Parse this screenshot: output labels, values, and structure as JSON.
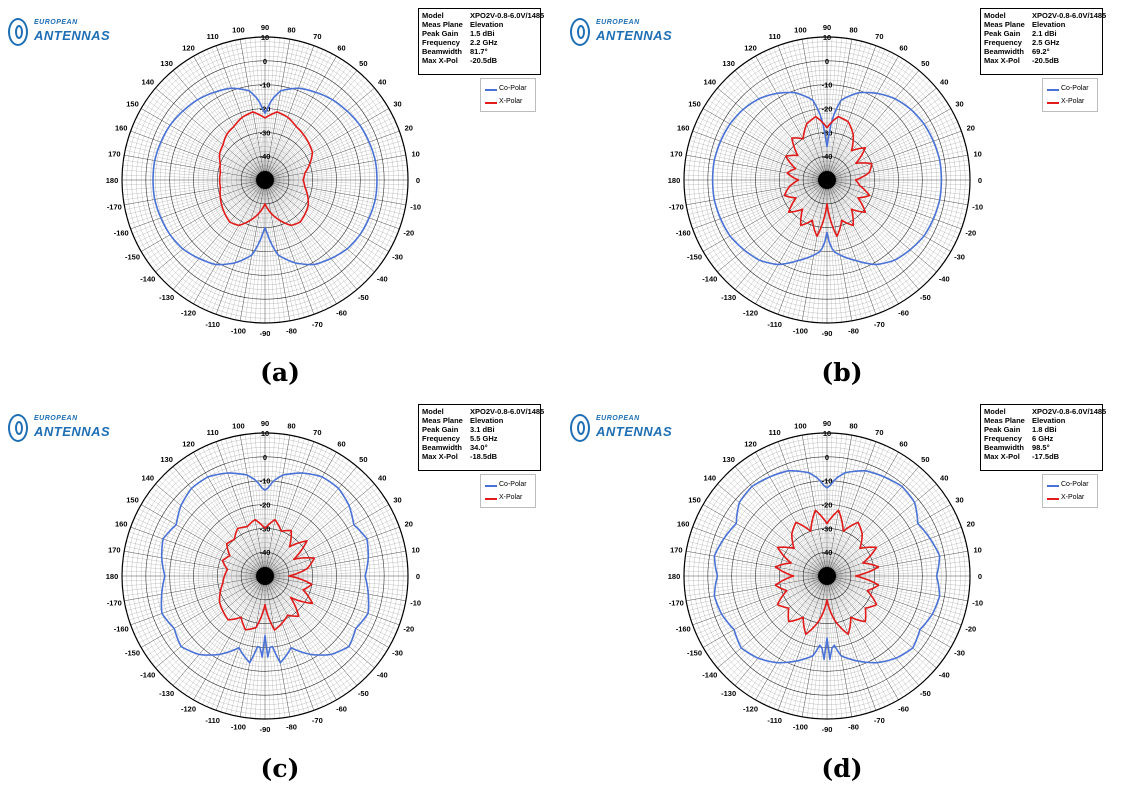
{
  "brand": {
    "line1": "EUROPEAN",
    "line2": "ANTENNAS"
  },
  "colors": {
    "co_polar": "#4a72d6",
    "x_polar": "#e11a1a",
    "grid": "#000000"
  },
  "info_labels": {
    "model": "Model",
    "meas_plane": "Meas Plane",
    "peak_gain": "Peak Gain",
    "frequency": "Frequency",
    "beamwidth": "Beamwidth",
    "max_xpol": "Max X-Pol"
  },
  "legend": {
    "co_polar": "Co-Polar",
    "x_polar": "X-Polar"
  },
  "panels": [
    {
      "caption": "(a)",
      "info": {
        "model": "XPO2V-0.8-6.0V/1485",
        "meas_plane": "Elevation",
        "peak_gain": "1.5 dBi",
        "frequency": "2.2 GHz",
        "beamwidth": "81.7°",
        "max_xpol": "-20.5dB"
      }
    },
    {
      "caption": "(b)",
      "info": {
        "model": "XPO2V-0.8-6.0V/1485",
        "meas_plane": "Elevation",
        "peak_gain": "2.1 dBi",
        "frequency": "2.5 GHz",
        "beamwidth": "69.2°",
        "max_xpol": "-20.5dB"
      }
    },
    {
      "caption": "(c)",
      "info": {
        "model": "XPO2V-0.8-6.0V/1485",
        "meas_plane": "Elevation",
        "peak_gain": "3.1 dBi",
        "frequency": "5.5 GHz",
        "beamwidth": "34.0°",
        "max_xpol": "-18.5dB"
      }
    },
    {
      "caption": "(d)",
      "info": {
        "model": "XPO2V-0.8-6.0V/1485",
        "meas_plane": "Elevation",
        "peak_gain": "1.8 dBi",
        "frequency": "6 GHz",
        "beamwidth": "98.5°",
        "max_xpol": "-17.5dB"
      }
    }
  ],
  "chart_data": [
    {
      "type": "polar",
      "id": "a",
      "r_range_db": [
        -50,
        10
      ],
      "r_ticks": [
        "10",
        "0",
        "-10",
        "-20",
        "-30",
        "-40"
      ],
      "angle_labels": [
        "0",
        "10",
        "20",
        "30",
        "40",
        "50",
        "60",
        "70",
        "80",
        "90",
        "100",
        "110",
        "120",
        "130",
        "140",
        "150",
        "160",
        "170",
        "180",
        "-170",
        "-160",
        "-150",
        "-140",
        "-130",
        "-120",
        "-110",
        "-100",
        "-90",
        "-80",
        "-70",
        "-60",
        "-50",
        "-40",
        "-30",
        "-20",
        "-10"
      ],
      "series": [
        {
          "name": "Co-Polar",
          "angles_deg": [
            0,
            10,
            20,
            30,
            40,
            50,
            60,
            70,
            80,
            85,
            88,
            90,
            92,
            95,
            100,
            110,
            120,
            130,
            140,
            150,
            160,
            170,
            180,
            -170,
            -160,
            -150,
            -140,
            -130,
            -120,
            -110,
            -100,
            -95,
            -92,
            -90,
            -88,
            -85,
            -80,
            -70,
            -60,
            -50,
            -40,
            -30,
            -20,
            -10
          ],
          "values_db": [
            -3,
            -3,
            -3.5,
            -4,
            -5,
            -6,
            -7.5,
            -9,
            -12,
            -16,
            -20,
            -22,
            -20,
            -16,
            -12,
            -9,
            -7.5,
            -6,
            -5,
            -4,
            -3.5,
            -3,
            -3,
            -3,
            -3.5,
            -4,
            -5,
            -7,
            -9,
            -13,
            -18,
            -24,
            -28,
            -30,
            -28,
            -24,
            -18,
            -13,
            -9,
            -7,
            -5,
            -4,
            -3.5,
            -3
          ]
        },
        {
          "name": "X-Polar",
          "angles_deg": [
            0,
            10,
            20,
            30,
            40,
            50,
            60,
            70,
            80,
            90,
            100,
            110,
            120,
            130,
            140,
            150,
            160,
            170,
            180,
            -170,
            -160,
            -150,
            -140,
            -130,
            -120,
            -110,
            -100,
            -90,
            -80,
            -70,
            -60,
            -50,
            -40,
            -30,
            -20,
            -10
          ],
          "values_db": [
            -34,
            -33,
            -30,
            -27,
            -26,
            -25,
            -24,
            -22,
            -21,
            -24,
            -21,
            -22,
            -24,
            -25,
            -27,
            -28,
            -30,
            -31,
            -31,
            -31,
            -30,
            -29,
            -28,
            -27,
            -28,
            -32,
            -36,
            -40,
            -36,
            -32,
            -28,
            -27,
            -28,
            -29,
            -31,
            -33
          ]
        }
      ]
    },
    {
      "type": "polar",
      "id": "b",
      "r_range_db": [
        -50,
        10
      ],
      "r_ticks": [
        "10",
        "0",
        "-10",
        "-20",
        "-30",
        "-40"
      ],
      "angle_labels": [
        "0",
        "10",
        "20",
        "30",
        "40",
        "50",
        "60",
        "70",
        "80",
        "90",
        "100",
        "110",
        "120",
        "130",
        "140",
        "150",
        "160",
        "170",
        "180",
        "-170",
        "-160",
        "-150",
        "-140",
        "-130",
        "-120",
        "-110",
        "-100",
        "-90",
        "-80",
        "-70",
        "-60",
        "-50",
        "-40",
        "-30",
        "-20",
        "-10"
      ],
      "series": [
        {
          "name": "Co-Polar",
          "angles_deg": [
            0,
            10,
            20,
            30,
            40,
            50,
            60,
            70,
            80,
            85,
            88,
            90,
            92,
            95,
            100,
            110,
            120,
            130,
            140,
            150,
            160,
            170,
            180,
            -170,
            -160,
            -150,
            -140,
            -130,
            -120,
            -110,
            -100,
            -95,
            -92,
            -90,
            -88,
            -85,
            -80,
            -70,
            -60,
            -50,
            -40,
            -30,
            -20,
            -10
          ],
          "values_db": [
            -2,
            -2,
            -2.5,
            -3,
            -4,
            -5.5,
            -8,
            -11,
            -16,
            -24,
            -32,
            -36,
            -32,
            -24,
            -16,
            -11,
            -8,
            -5.5,
            -4,
            -3,
            -2.5,
            -2,
            -2,
            -2,
            -2.5,
            -3,
            -4.5,
            -6,
            -9,
            -14,
            -18,
            -20,
            -24,
            -28,
            -24,
            -20,
            -18,
            -14,
            -9,
            -6,
            -4.5,
            -3,
            -2.5,
            -2
          ]
        },
        {
          "name": "X-Polar",
          "angles_deg": [
            0,
            10,
            20,
            30,
            40,
            50,
            60,
            70,
            80,
            90,
            100,
            110,
            120,
            130,
            140,
            150,
            160,
            170,
            180,
            -170,
            -160,
            -150,
            -140,
            -130,
            -120,
            -110,
            -100,
            -90,
            -80,
            -70,
            -60,
            -50,
            -40,
            -30,
            -20,
            -10
          ],
          "values_db": [
            -38,
            -32,
            -30,
            -36,
            -29,
            -34,
            -28,
            -24,
            -23,
            -28,
            -23,
            -25,
            -30,
            -27,
            -34,
            -30,
            -36,
            -33,
            -38,
            -34,
            -31,
            -35,
            -29,
            -34,
            -28,
            -32,
            -26,
            -40,
            -26,
            -32,
            -28,
            -34,
            -29,
            -35,
            -31,
            -36
          ]
        }
      ]
    },
    {
      "type": "polar",
      "id": "c",
      "r_range_db": [
        -50,
        10
      ],
      "r_ticks": [
        "10",
        "0",
        "-10",
        "-20",
        "-30",
        "-40"
      ],
      "angle_labels": [
        "0",
        "10",
        "20",
        "30",
        "40",
        "50",
        "60",
        "70",
        "80",
        "90",
        "100",
        "110",
        "120",
        "130",
        "140",
        "150",
        "160",
        "170",
        "180",
        "-170",
        "-160",
        "-150",
        "-140",
        "-130",
        "-120",
        "-110",
        "-100",
        "-90",
        "-80",
        "-70",
        "-60",
        "-50",
        "-40",
        "-30",
        "-20",
        "-10"
      ],
      "series": [
        {
          "name": "Co-Polar",
          "angles_deg": [
            0,
            10,
            20,
            30,
            40,
            50,
            60,
            70,
            80,
            85,
            88,
            90,
            92,
            95,
            100,
            110,
            120,
            130,
            140,
            150,
            160,
            170,
            180,
            -170,
            -160,
            -150,
            -140,
            -130,
            -120,
            -110,
            -100,
            -95,
            -92,
            -90,
            -88,
            -85,
            -80,
            -70,
            -60,
            -50,
            -40,
            -30,
            -20,
            -10
          ],
          "values_db": [
            -8,
            -6,
            -4.5,
            -7,
            -4,
            -2,
            -2,
            -4,
            -7,
            -10,
            -13,
            -14,
            -13,
            -10,
            -7,
            -4,
            -2,
            -2,
            -4,
            -7,
            -4.5,
            -6,
            -8,
            -6,
            -4,
            -6,
            -4,
            -7,
            -12,
            -18,
            -13,
            -22,
            -16,
            -25,
            -16,
            -22,
            -13,
            -18,
            -12,
            -7,
            -4,
            -6,
            -4,
            -6
          ]
        },
        {
          "name": "X-Polar",
          "angles_deg": [
            0,
            10,
            20,
            30,
            40,
            50,
            60,
            70,
            80,
            90,
            100,
            110,
            120,
            130,
            140,
            150,
            160,
            170,
            180,
            -170,
            -160,
            -150,
            -140,
            -130,
            -120,
            -110,
            -100,
            -90,
            -80,
            -70,
            -60,
            -50,
            -40,
            -30,
            -20,
            -10
          ],
          "values_db": [
            -40,
            -32,
            -28,
            -36,
            -27,
            -34,
            -28,
            -30,
            -26,
            -30,
            -26,
            -28,
            -27,
            -30,
            -29,
            -33,
            -31,
            -34,
            -33,
            -32,
            -30,
            -28,
            -27,
            -26,
            -30,
            -26,
            -28,
            -38,
            -27,
            -29,
            -31,
            -28,
            -36,
            -27,
            -33,
            -30
          ]
        }
      ]
    },
    {
      "type": "polar",
      "id": "d",
      "r_range_db": [
        -50,
        10
      ],
      "r_ticks": [
        "10",
        "0",
        "-10",
        "-20",
        "-30",
        "-40"
      ],
      "angle_labels": [
        "0",
        "10",
        "20",
        "30",
        "40",
        "50",
        "60",
        "70",
        "80",
        "90",
        "100",
        "110",
        "120",
        "130",
        "140",
        "150",
        "160",
        "170",
        "180",
        "-170",
        "-160",
        "-150",
        "-140",
        "-130",
        "-120",
        "-110",
        "-100",
        "-90",
        "-80",
        "-70",
        "-60",
        "-50",
        "-40",
        "-30",
        "-20",
        "-10"
      ],
      "series": [
        {
          "name": "Co-Polar",
          "angles_deg": [
            0,
            10,
            20,
            30,
            40,
            50,
            60,
            70,
            80,
            85,
            88,
            90,
            92,
            95,
            100,
            110,
            120,
            130,
            140,
            150,
            160,
            170,
            180,
            -170,
            -160,
            -150,
            -140,
            -130,
            -120,
            -110,
            -100,
            -95,
            -92,
            -90,
            -88,
            -85,
            -80,
            -70,
            -60,
            -50,
            -40,
            -30,
            -20,
            -10
          ],
          "values_db": [
            -4,
            -2,
            -4,
            -6,
            -2,
            -1,
            -2,
            -3,
            -6,
            -9,
            -12,
            -13,
            -12,
            -9,
            -6,
            -3,
            -2,
            -1,
            -2,
            -6,
            -4,
            -2,
            -4,
            -2,
            -3,
            -5,
            -3,
            -5,
            -8,
            -12,
            -16,
            -22,
            -15,
            -24,
            -15,
            -22,
            -16,
            -12,
            -8,
            -5,
            -3,
            -5,
            -3,
            -2
          ]
        },
        {
          "name": "X-Polar",
          "angles_deg": [
            0,
            10,
            20,
            30,
            40,
            50,
            60,
            70,
            80,
            90,
            100,
            110,
            120,
            130,
            140,
            150,
            160,
            170,
            180,
            -170,
            -160,
            -150,
            -140,
            -130,
            -120,
            -110,
            -100,
            -90,
            -80,
            -70,
            -60,
            -50,
            -40,
            -30,
            -20,
            -10
          ],
          "values_db": [
            -38,
            -28,
            -34,
            -26,
            -32,
            -27,
            -24,
            -30,
            -22,
            -28,
            -22,
            -30,
            -24,
            -27,
            -32,
            -26,
            -34,
            -28,
            -36,
            -28,
            -32,
            -26,
            -29,
            -25,
            -30,
            -24,
            -31,
            -40,
            -31,
            -24,
            -30,
            -25,
            -29,
            -26,
            -32,
            -28
          ]
        }
      ]
    }
  ]
}
